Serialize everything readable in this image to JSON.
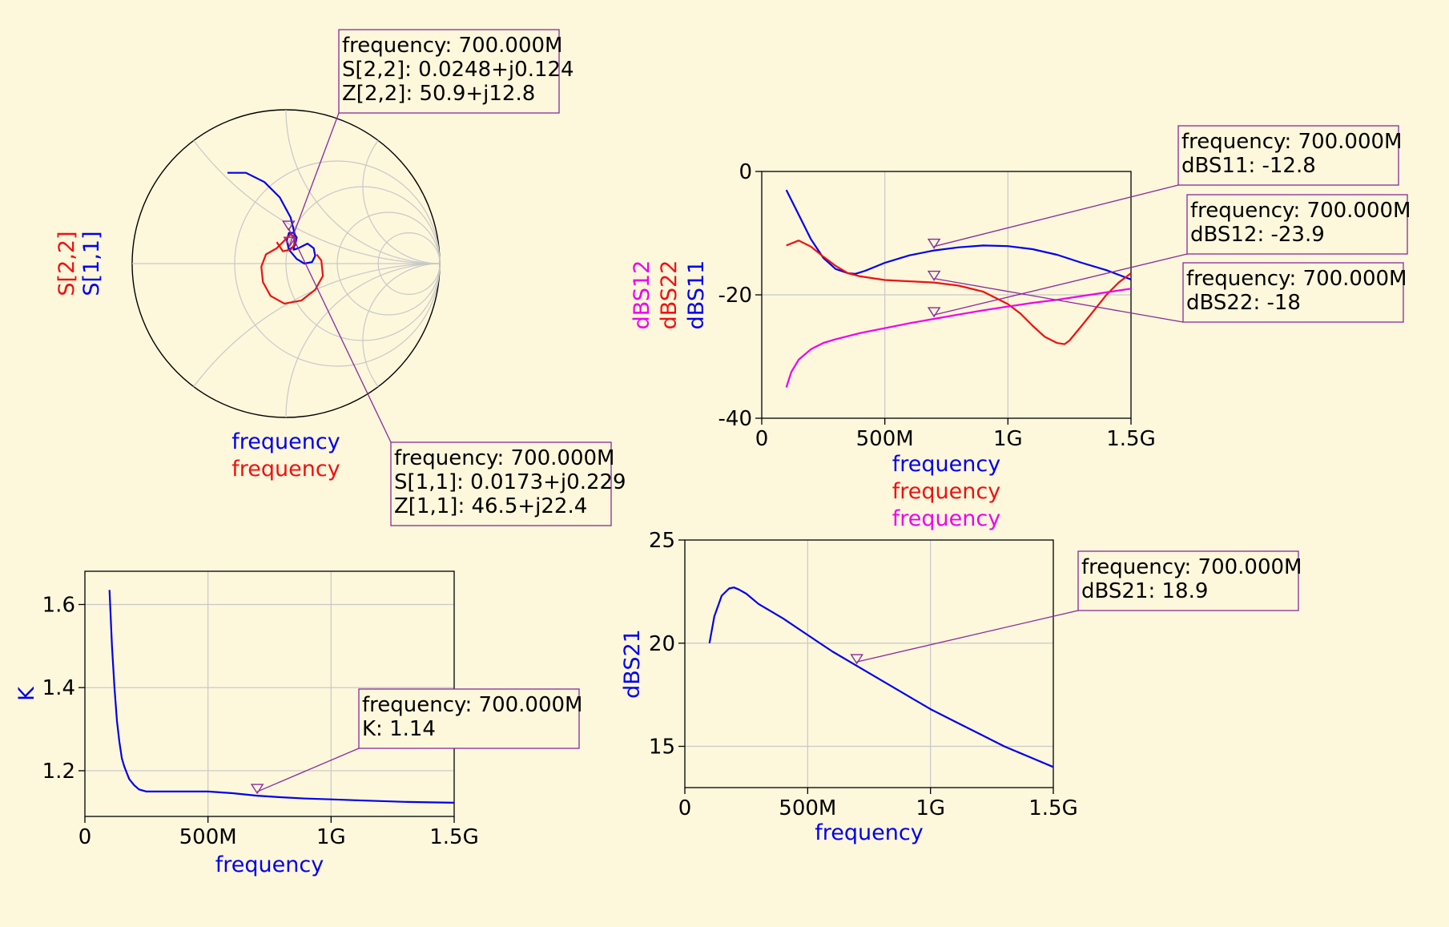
{
  "colors": {
    "background": "#fdf7dc",
    "s11": "#0000ee",
    "s22": "#ee1111",
    "s12": "#ee00ee",
    "marker": "#8a2a9a",
    "grid": "#c8c8c8"
  },
  "chart_data": [
    {
      "id": "smith",
      "type": "line",
      "subtype": "smith",
      "ylabels": [
        {
          "text": "S[2,2]",
          "color": "#ee1111"
        },
        {
          "text": "S[1,1]",
          "color": "#0000ee"
        }
      ],
      "xlabels": [
        {
          "text": "frequency",
          "color": "#0000ee"
        },
        {
          "text": "frequency",
          "color": "#ee1111"
        }
      ],
      "series": [
        {
          "key": "s11",
          "color": "#0000ee",
          "points": [
            [
              -0.38,
              0.59
            ],
            [
              -0.26,
              0.59
            ],
            [
              -0.14,
              0.53
            ],
            [
              -0.04,
              0.43
            ],
            [
              0.03,
              0.3
            ],
            [
              0.06,
              0.18
            ],
            [
              0.05,
              0.09
            ],
            [
              0.08,
              0.1
            ],
            [
              0.14,
              0.13
            ],
            [
              0.18,
              0.1
            ],
            [
              0.19,
              0.05
            ],
            [
              0.17,
              0.01
            ],
            [
              0.12,
              0.0
            ],
            [
              0.07,
              0.03
            ],
            [
              0.02,
              0.09
            ],
            [
              0.005,
              0.15
            ],
            [
              0.02,
              0.2
            ],
            [
              0.05,
              0.2
            ],
            [
              0.07,
              0.17
            ],
            [
              0.06,
              0.12
            ],
            [
              0.02,
              0.09
            ]
          ]
        },
        {
          "key": "s22",
          "color": "#ee1111",
          "points": [
            [
              -0.06,
              0.14
            ],
            [
              -0.02,
              0.08
            ],
            [
              0.03,
              0.09
            ],
            [
              0.06,
              0.13
            ],
            [
              0.06,
              0.17
            ],
            [
              0.03,
              0.19
            ],
            [
              -0.01,
              0.15
            ],
            [
              -0.06,
              0.1
            ],
            [
              -0.13,
              0.06
            ],
            [
              -0.16,
              -0.02
            ],
            [
              -0.15,
              -0.12
            ],
            [
              -0.1,
              -0.21
            ],
            [
              -0.01,
              -0.26
            ],
            [
              0.1,
              -0.24
            ],
            [
              0.19,
              -0.17
            ],
            [
              0.24,
              -0.08
            ],
            [
              0.23,
              0.02
            ],
            [
              0.2,
              0.06
            ]
          ]
        }
      ],
      "markers": [
        {
          "key": "s22",
          "at": [
            0.0248,
            0.124
          ],
          "box_side": "upper",
          "lines": [
            "frequency: 700.000M",
            "S[2,2]: 0.0248+j0.124",
            "Z[2,2]: 50.9+j12.8"
          ]
        },
        {
          "key": "s11",
          "at": [
            0.0173,
            0.229
          ],
          "box_side": "lower",
          "lines": [
            "frequency: 700.000M",
            "S[1,1]: 0.0173+j0.229",
            "Z[1,1]: 46.5+j22.4"
          ]
        }
      ]
    },
    {
      "id": "sparams",
      "type": "line",
      "xlim": [
        0,
        1.5
      ],
      "ylim": [
        -40,
        0
      ],
      "xticks": [
        0,
        0.5,
        1,
        1.5
      ],
      "xtick_labels": [
        "0",
        "500M",
        "1G",
        "1.5G"
      ],
      "yticks": [
        -40,
        -20,
        0
      ],
      "ytick_labels": [
        "-40",
        "-20",
        "0"
      ],
      "ylabels": [
        {
          "text": "dBS12",
          "color": "#ee00ee"
        },
        {
          "text": "dBS22",
          "color": "#ee1111"
        },
        {
          "text": "dBS11",
          "color": "#0000ee"
        }
      ],
      "xlabels": [
        {
          "text": "frequency",
          "color": "#0000ee"
        },
        {
          "text": "frequency",
          "color": "#ee1111"
        },
        {
          "text": "frequency",
          "color": "#ee00ee"
        }
      ],
      "series": [
        {
          "key": "dBS11",
          "color": "#0000ee",
          "x": [
            0.1,
            0.15,
            0.2,
            0.25,
            0.3,
            0.35,
            0.38,
            0.42,
            0.5,
            0.6,
            0.7,
            0.8,
            0.9,
            1.0,
            1.1,
            1.2,
            1.3,
            1.4,
            1.5
          ],
          "y": [
            -3,
            -7,
            -11,
            -14,
            -15.8,
            -16.5,
            -16.6,
            -16.1,
            -14.8,
            -13.6,
            -12.8,
            -12.3,
            -12.0,
            -12.1,
            -12.6,
            -13.5,
            -14.8,
            -16.0,
            -17.5
          ]
        },
        {
          "key": "dBS22",
          "color": "#ee1111",
          "x": [
            0.1,
            0.15,
            0.2,
            0.25,
            0.3,
            0.35,
            0.4,
            0.5,
            0.6,
            0.7,
            0.8,
            0.9,
            1.0,
            1.05,
            1.1,
            1.15,
            1.2,
            1.23,
            1.25,
            1.3,
            1.35,
            1.4,
            1.45,
            1.5
          ],
          "y": [
            -12,
            -11.2,
            -12.2,
            -13.8,
            -15.3,
            -16.5,
            -17.0,
            -17.6,
            -17.8,
            -18.0,
            -18.5,
            -19.5,
            -21.5,
            -23.0,
            -25.0,
            -26.8,
            -27.8,
            -28.0,
            -27.4,
            -25.0,
            -22.5,
            -20.0,
            -18.0,
            -16.5
          ]
        },
        {
          "key": "dBS12",
          "color": "#ee00ee",
          "x": [
            0.1,
            0.12,
            0.15,
            0.2,
            0.25,
            0.3,
            0.4,
            0.5,
            0.6,
            0.7,
            0.8,
            0.9,
            1.0,
            1.1,
            1.2,
            1.3,
            1.4,
            1.5
          ],
          "y": [
            -35,
            -32.5,
            -30.5,
            -28.8,
            -27.8,
            -27.2,
            -26.2,
            -25.4,
            -24.6,
            -23.9,
            -23.2,
            -22.5,
            -21.9,
            -21.3,
            -20.8,
            -20.2,
            -19.6,
            -19.0
          ]
        }
      ],
      "markers": [
        {
          "key": "dBS11",
          "x": 0.7,
          "y": -12.8,
          "lines": [
            "frequency: 700.000M",
            "dBS11: -12.8"
          ]
        },
        {
          "key": "dBS12",
          "x": 0.7,
          "y": -23.9,
          "lines": [
            "frequency: 700.000M",
            "dBS12: -23.9"
          ]
        },
        {
          "key": "dBS22",
          "x": 0.7,
          "y": -18,
          "lines": [
            "frequency: 700.000M",
            "dBS22: -18"
          ]
        }
      ]
    },
    {
      "id": "stability",
      "type": "line",
      "xlim": [
        0,
        1.5
      ],
      "ylim": [
        1.09,
        1.68
      ],
      "xticks": [
        0,
        0.5,
        1,
        1.5
      ],
      "xtick_labels": [
        "0",
        "500M",
        "1G",
        "1.5G"
      ],
      "yticks": [
        1.2,
        1.4,
        1.6
      ],
      "ytick_labels": [
        "1.2",
        "1.4",
        "1.6"
      ],
      "ylabels": [
        {
          "text": "K",
          "color": "#0000ee"
        }
      ],
      "xlabels": [
        {
          "text": "frequency",
          "color": "#0000ee"
        }
      ],
      "series": [
        {
          "key": "K",
          "color": "#0000ee",
          "x": [
            0.1,
            0.11,
            0.12,
            0.13,
            0.14,
            0.15,
            0.16,
            0.17,
            0.18,
            0.2,
            0.22,
            0.25,
            0.3,
            0.4,
            0.5,
            0.6,
            0.7,
            0.8,
            0.9,
            1.0,
            1.1,
            1.2,
            1.3,
            1.4,
            1.5
          ],
          "y": [
            1.635,
            1.5,
            1.4,
            1.32,
            1.27,
            1.23,
            1.21,
            1.195,
            1.18,
            1.165,
            1.155,
            1.15,
            1.15,
            1.15,
            1.15,
            1.146,
            1.14,
            1.136,
            1.133,
            1.131,
            1.129,
            1.127,
            1.125,
            1.124,
            1.123
          ]
        }
      ],
      "markers": [
        {
          "key": "K",
          "x": 0.7,
          "y": 1.14,
          "lines": [
            "frequency: 700.000M",
            "K: 1.14"
          ]
        }
      ]
    },
    {
      "id": "gain",
      "type": "line",
      "xlim": [
        0,
        1.5
      ],
      "ylim": [
        13,
        25
      ],
      "xticks": [
        0,
        0.5,
        1,
        1.5
      ],
      "xtick_labels": [
        "0",
        "500M",
        "1G",
        "1.5G"
      ],
      "yticks": [
        15,
        20,
        25
      ],
      "ytick_labels": [
        "15",
        "20",
        "25"
      ],
      "ylabels": [
        {
          "text": "dBS21",
          "color": "#0000ee"
        }
      ],
      "xlabels": [
        {
          "text": "frequency",
          "color": "#0000ee"
        }
      ],
      "series": [
        {
          "key": "dBS21",
          "color": "#0000ee",
          "x": [
            0.1,
            0.12,
            0.15,
            0.18,
            0.2,
            0.22,
            0.25,
            0.3,
            0.4,
            0.5,
            0.6,
            0.7,
            0.8,
            0.9,
            1.0,
            1.1,
            1.2,
            1.3,
            1.4,
            1.5
          ],
          "y": [
            20.0,
            21.3,
            22.3,
            22.65,
            22.7,
            22.6,
            22.4,
            21.9,
            21.2,
            20.4,
            19.6,
            18.9,
            18.2,
            17.5,
            16.8,
            16.2,
            15.6,
            15.0,
            14.5,
            14.0
          ]
        }
      ],
      "markers": [
        {
          "key": "dBS21",
          "x": 0.7,
          "y": 18.9,
          "lines": [
            "frequency: 700.000M",
            "dBS21: 18.9"
          ]
        }
      ]
    }
  ]
}
